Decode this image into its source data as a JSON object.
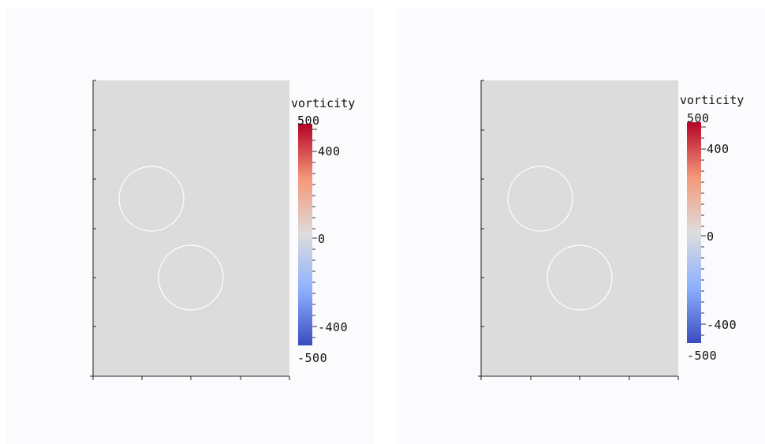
{
  "chart_data": [
    {
      "type": "heatmap",
      "field": "vorticity",
      "colorbar": {
        "title": "vorticity",
        "range": [
          -500,
          500
        ],
        "tick_labels": [
          "500",
          "400",
          "0",
          "-400",
          "-500"
        ],
        "colormap": [
          "#3b4cc0",
          "#8db0fe",
          "#dddddd",
          "#f4987a",
          "#b40426"
        ]
      },
      "domain_background": "#dcdcdc",
      "circles": 2
    },
    {
      "type": "heatmap",
      "field": "vorticity",
      "colorbar": {
        "title": "vorticity",
        "range": [
          -500,
          500
        ],
        "tick_labels": [
          "500",
          "400",
          "0",
          "-400",
          "-500"
        ],
        "colormap": [
          "#3b4cc0",
          "#8db0fe",
          "#dddddd",
          "#f4987a",
          "#b40426"
        ]
      },
      "domain_background": "#dcdcdc",
      "circles": 2
    }
  ]
}
